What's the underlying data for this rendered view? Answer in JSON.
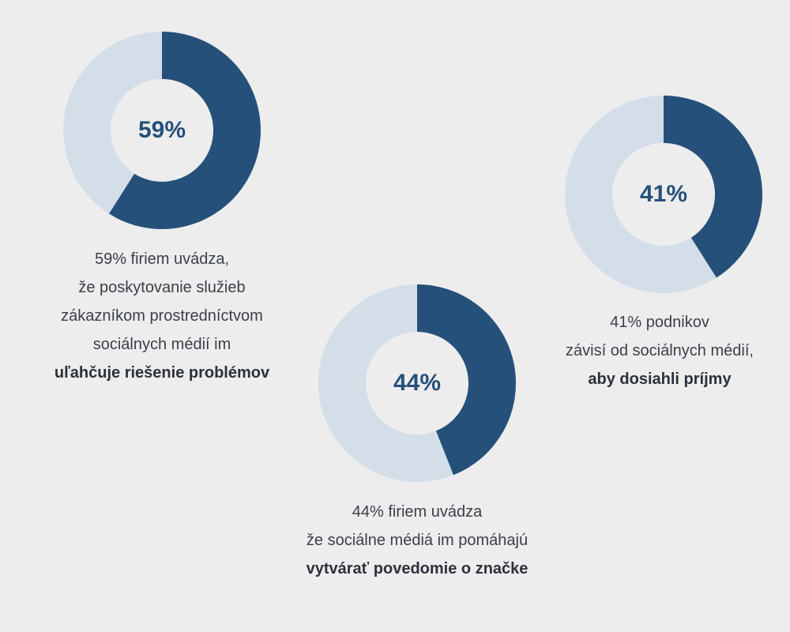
{
  "colors": {
    "filled": "#25507a",
    "empty": "#d3dee9",
    "hole": "#ededed",
    "text": "#3a3f4a"
  },
  "chart_data": [
    {
      "type": "pie",
      "values": [
        59,
        41
      ],
      "label": "59%",
      "caption": [
        "59% firiem uvádza,",
        "že poskytovanie služieb",
        "zákazníkom prostredníctvom",
        "sociálnych médií im"
      ],
      "caption_bold": "uľahčuje riešenie problémov"
    },
    {
      "type": "pie",
      "values": [
        44,
        56
      ],
      "label": "44%",
      "caption": [
        "44% firiem uvádza",
        "že sociálne médiá im pomáhajú"
      ],
      "caption_bold": "vytvárať povedomie o značke"
    },
    {
      "type": "pie",
      "values": [
        41,
        59
      ],
      "label": "41%",
      "caption": [
        "41% podnikov",
        "závisí od sociálnych médií,"
      ],
      "caption_bold": "aby dosiahli príjmy"
    }
  ]
}
